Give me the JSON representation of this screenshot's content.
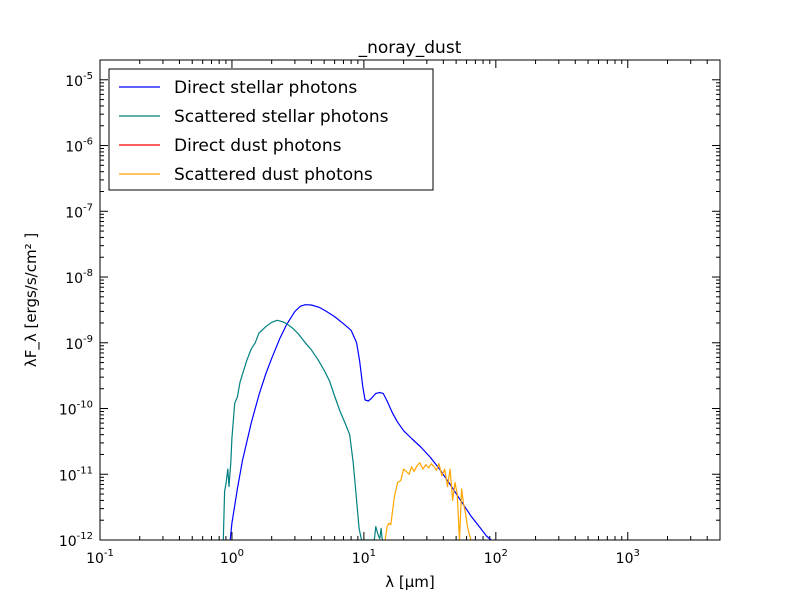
{
  "chart_data": {
    "type": "line",
    "title": "_noray_dust",
    "xlabel": "λ [μm]",
    "ylabel": "λF_λ [ergs/s/cm² ]",
    "x_scale": "log",
    "y_scale": "log",
    "xlim": [
      0.1,
      5000
    ],
    "ylim": [
      1e-12,
      2e-05
    ],
    "grid": false,
    "legend_position": "top-left",
    "x_ticks": [
      {
        "value": 0.1,
        "base": "10",
        "exp": "-1"
      },
      {
        "value": 1,
        "base": "10",
        "exp": "0"
      },
      {
        "value": 10,
        "base": "10",
        "exp": "1"
      },
      {
        "value": 100,
        "base": "10",
        "exp": "2"
      },
      {
        "value": 1000,
        "base": "10",
        "exp": "3"
      }
    ],
    "y_ticks": [
      {
        "value": 1e-12,
        "base": "10",
        "exp": "-12"
      },
      {
        "value": 1e-11,
        "base": "10",
        "exp": "-11"
      },
      {
        "value": 1e-10,
        "base": "10",
        "exp": "-10"
      },
      {
        "value": 1e-09,
        "base": "10",
        "exp": "-9"
      },
      {
        "value": 1e-08,
        "base": "10",
        "exp": "-8"
      },
      {
        "value": 1e-07,
        "base": "10",
        "exp": "-7"
      },
      {
        "value": 1e-06,
        "base": "10",
        "exp": "-6"
      },
      {
        "value": 1e-05,
        "base": "10",
        "exp": "-5"
      }
    ],
    "series": [
      {
        "name": "Direct stellar photons",
        "color": "#0000ff",
        "x": [
          0.97,
          1.0,
          1.1,
          1.2,
          1.4,
          1.6,
          1.8,
          2.0,
          2.3,
          2.6,
          3.0,
          3.3,
          3.6,
          4.0,
          4.6,
          5.2,
          6.0,
          7.0,
          8.0,
          8.8,
          9.3,
          9.8,
          10.2,
          10.8,
          11.5,
          12.3,
          13.2,
          14.0,
          15.0,
          16.5,
          18.0,
          20.0,
          23.0,
          27.0,
          32.0,
          38.0,
          45.0,
          55.0,
          65.0,
          75.0,
          85.0,
          92.0
        ],
        "y": [
          1e-12,
          1.8e-12,
          6e-12,
          1.6e-11,
          6e-11,
          1.6e-10,
          3.3e-10,
          5.8e-10,
          1.15e-09,
          1.9e-09,
          3e-09,
          3.6e-09,
          3.8e-09,
          3.75e-09,
          3.45e-09,
          3e-09,
          2.5e-09,
          1.95e-09,
          1.55e-09,
          1e-09,
          5.2e-10,
          2.2e-10,
          1.35e-10,
          1.3e-10,
          1.45e-10,
          1.7e-10,
          1.75e-10,
          1.7e-10,
          1.3e-10,
          8.5e-11,
          6.2e-11,
          4.6e-11,
          3.5e-11,
          2.6e-11,
          1.8e-11,
          1.15e-11,
          7e-12,
          3.8e-12,
          2.3e-12,
          1.6e-12,
          1.15e-12,
          1e-12
        ]
      },
      {
        "name": "Scattered stellar photons",
        "color": "#008080",
        "x": [
          0.86,
          0.88,
          0.9,
          0.93,
          0.95,
          0.98,
          1.0,
          1.05,
          1.1,
          1.15,
          1.2,
          1.3,
          1.4,
          1.5,
          1.6,
          1.8,
          2.0,
          2.2,
          2.4,
          2.6,
          2.9,
          3.2,
          3.6,
          4.0,
          4.5,
          5.0,
          5.5,
          6.0,
          6.6,
          7.2,
          7.8,
          8.3,
          8.8,
          9.2,
          9.6,
          12.0,
          12.3,
          12.6,
          12.9,
          13.2,
          13.5,
          13.8
        ],
        "y": [
          1e-12,
          5.5e-12,
          7e-12,
          1.2e-11,
          6.5e-12,
          1.5e-11,
          3.5e-11,
          1.2e-10,
          1.5e-10,
          2.5e-10,
          3.3e-10,
          5.5e-10,
          8e-10,
          1e-09,
          1.4e-09,
          1.75e-09,
          2.05e-09,
          2.2e-09,
          2.1e-09,
          1.95e-09,
          1.65e-09,
          1.35e-09,
          1e-09,
          7.8e-10,
          5.5e-10,
          3.8e-10,
          2.6e-10,
          1.55e-10,
          9e-11,
          6e-11,
          4e-11,
          1.5e-11,
          4e-12,
          1.5e-12,
          1e-12,
          1e-12,
          1.6e-12,
          1.35e-12,
          1.15e-12,
          1.05e-12,
          1.5e-12,
          1e-12
        ]
      },
      {
        "name": "Direct dust photons",
        "color": "#ff0000",
        "x": [],
        "y": []
      },
      {
        "name": "Scattered dust photons",
        "color": "#ffa500",
        "x": [
          14.5,
          15.0,
          15.5,
          16.0,
          17.0,
          18.0,
          19.0,
          20.0,
          21.0,
          22.0,
          23.0,
          24.0,
          25.0,
          26.5,
          28.0,
          29.5,
          31.0,
          32.5,
          34.0,
          35.5,
          37.0,
          39.0,
          41.0,
          43.0,
          45.0,
          47.0,
          49.0,
          51.0,
          53.0,
          55.0,
          57.0,
          59.0,
          61.0,
          63.0,
          65.0
        ],
        "y": [
          1e-12,
          1.6e-12,
          1.8e-12,
          1.7e-12,
          4.5e-12,
          7.5e-12,
          8e-12,
          1.2e-11,
          1.1e-11,
          1e-11,
          1.3e-11,
          1.1e-11,
          1.3e-11,
          1.5e-11,
          1.2e-11,
          1.4e-11,
          1.25e-11,
          1.45e-11,
          1.3e-11,
          1.15e-11,
          1.45e-11,
          9.5e-12,
          1.2e-11,
          6.5e-12,
          1.2e-11,
          4e-12,
          7.5e-12,
          5e-12,
          1e-12,
          6e-12,
          3.5e-12,
          2.5e-12,
          1.6e-12,
          1.2e-12,
          1e-12
        ]
      }
    ]
  }
}
